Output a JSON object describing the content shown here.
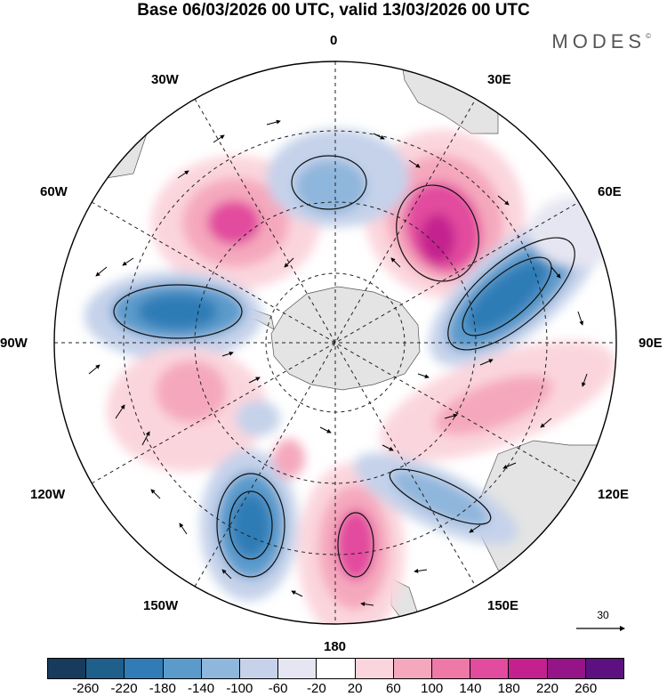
{
  "title": "Base 06/03/2026 00 UTC, valid 13/03/2026 00 UTC",
  "brand": {
    "name": "MODES",
    "mark": "©"
  },
  "longitude_labels": {
    "top": "0",
    "bottom": "180",
    "left": "90W",
    "right": "90E",
    "w30": "30W",
    "e30": "30E",
    "w60": "60W",
    "e60": "60E",
    "w120": "120W",
    "e120": "120E",
    "w150": "150W",
    "e150": "150E"
  },
  "colorbar": {
    "colors": [
      "#163b5c",
      "#1f5f8c",
      "#2f7cb6",
      "#5b9bcc",
      "#8fb6dc",
      "#c5d2ea",
      "#e6e6f2",
      "#ffffff",
      "#fbd5dd",
      "#f5a8bd",
      "#ee78a6",
      "#e24c9e",
      "#c4218f",
      "#951487",
      "#5d1180"
    ],
    "ticks": [
      "-260",
      "-220",
      "-180",
      "-140",
      "-100",
      "-60",
      "-20",
      "20",
      "60",
      "100",
      "140",
      "180",
      "220",
      "260"
    ]
  },
  "reference_vector": {
    "label": "30"
  },
  "anomaly_centers": [
    {
      "sign": "positive",
      "lon": "30E",
      "strength": 220
    },
    {
      "sign": "negative",
      "lon": "60E-75E",
      "strength": -200
    },
    {
      "sign": "positive",
      "lon": "40W",
      "strength": 160
    },
    {
      "sign": "negative",
      "lon": "0",
      "strength": -100
    },
    {
      "sign": "negative",
      "lon": "80W",
      "strength": -180
    },
    {
      "sign": "positive",
      "lon": "110W",
      "strength": 120
    },
    {
      "sign": "negative",
      "lon": "150W",
      "strength": -200
    },
    {
      "sign": "positive",
      "lon": "170E",
      "strength": 180
    },
    {
      "sign": "negative",
      "lon": "130E",
      "strength": -140
    },
    {
      "sign": "positive",
      "lon": "100E",
      "strength": 80
    }
  ]
}
